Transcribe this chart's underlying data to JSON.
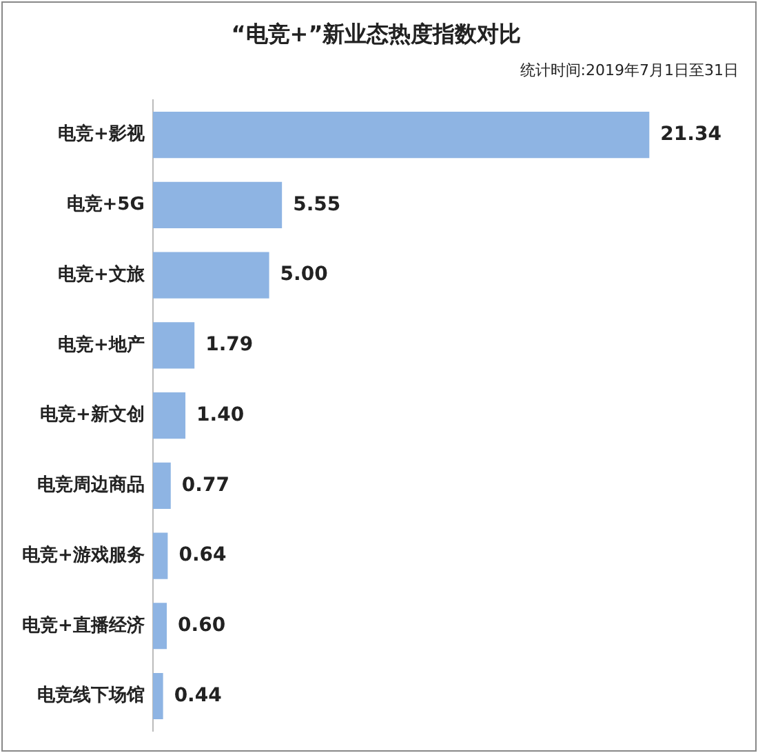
{
  "chart_data": {
    "type": "bar",
    "orientation": "horizontal",
    "title": "“电竞+”新业态热度指数对比",
    "subtitle": "统计时间:2019年7月1日至31日",
    "categories": [
      "电竞+影视",
      "电竞+5G",
      "电竞+文旅",
      "电竞+地产",
      "电竞+新文创",
      "电竞周边商品",
      "电竞+游戏服务",
      "电竞+直播经济",
      "电竞线下场馆"
    ],
    "values": [
      21.34,
      5.55,
      5.0,
      1.79,
      1.4,
      0.77,
      0.64,
      0.6,
      0.44
    ],
    "value_labels": [
      "21.34",
      "5.55",
      "5.00",
      "1.79",
      "1.40",
      "0.77",
      "0.64",
      "0.60",
      "0.44"
    ],
    "color": "#8eb4e3",
    "tick_labels": "y",
    "legend": false
  }
}
